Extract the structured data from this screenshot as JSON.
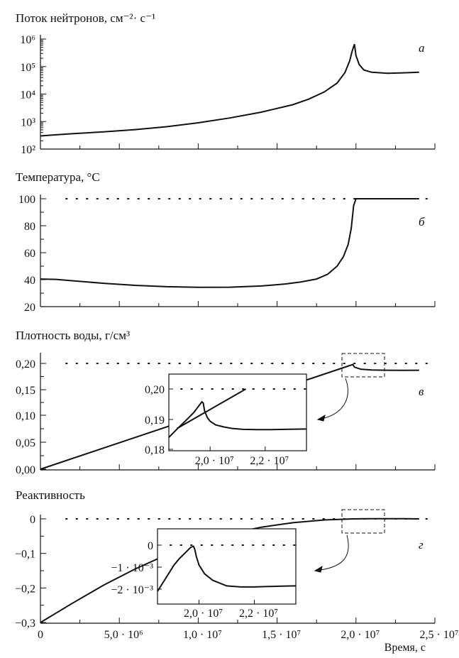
{
  "chart_data": [
    {
      "id": "a",
      "type": "line",
      "title": "Поток нейтронов, см⁻²· с⁻¹",
      "panel_label": "а",
      "yscale": "log",
      "ylim": [
        100,
        1000000
      ],
      "xlim": [
        0,
        25000000
      ],
      "ytick_labels": [
        "10²",
        "10³",
        "10⁴",
        "10⁵",
        "10⁶"
      ],
      "series": [
        {
          "x": [
            0,
            1000000,
            2000000,
            4000000,
            6000000,
            8000000,
            10000000,
            12000000,
            14000000,
            16000000,
            17000000,
            18000000,
            18800000,
            19300000,
            19600000,
            19750000,
            19900000,
            20000000,
            20200000,
            20500000,
            21000000,
            22000000,
            23000000,
            24000000
          ],
          "y": [
            300,
            330,
            360,
            420,
            510,
            650,
            900,
            1350,
            2200,
            4100,
            6500,
            12000,
            25000,
            60000,
            160000,
            350000,
            650000,
            250000,
            120000,
            75000,
            62000,
            57000,
            59000,
            62000
          ]
        }
      ]
    },
    {
      "id": "b",
      "type": "line",
      "title": "Температура, °С",
      "panel_label": "б",
      "ylim": [
        20,
        100
      ],
      "xlim": [
        0,
        25000000
      ],
      "ytick_labels": [
        "20",
        "40",
        "60",
        "80",
        "100"
      ],
      "reference_line": 100,
      "series": [
        {
          "x": [
            0,
            1000000,
            2000000,
            4000000,
            6000000,
            8000000,
            10000000,
            12000000,
            14000000,
            15500000,
            16500000,
            17500000,
            18200000,
            18800000,
            19200000,
            19500000,
            19700000,
            19850000,
            20000000,
            21000000,
            22000000,
            23000000,
            24000000
          ],
          "y": [
            40.5,
            40.2,
            39.2,
            37.3,
            35.8,
            34.8,
            34.3,
            34.4,
            35.3,
            36.8,
            38.3,
            40.5,
            44,
            50,
            57,
            66,
            78,
            95,
            100,
            100,
            100,
            100,
            100
          ]
        }
      ]
    },
    {
      "id": "v",
      "type": "line",
      "title": "Плотность воды, г/см³",
      "panel_label": "в",
      "ylim": [
        0,
        0.22
      ],
      "xlim": [
        0,
        25000000
      ],
      "ytick_labels": [
        "0,00",
        "0,05",
        "0,10",
        "0,15",
        "0,20"
      ],
      "reference_line": 0.2,
      "series": [
        {
          "x": [
            0,
            19600000,
            19800000,
            19900000,
            20300000,
            21000000,
            22000000,
            23000000,
            24000000
          ],
          "y": [
            0,
            0.196,
            0.198,
            0.193,
            0.189,
            0.1875,
            0.187,
            0.1868,
            0.187
          ]
        }
      ],
      "inset": {
        "xlim": [
          18500000,
          23500000
        ],
        "ylim": [
          0.18,
          0.205
        ],
        "xtick_labels": [
          "2,0 · 10⁷",
          "2,2 · 10⁷"
        ],
        "ytick_labels": [
          "0,18",
          "0,19",
          "0,20"
        ],
        "reference_line": 0.2,
        "series": [
          {
            "x": [
              18500000,
              18800000,
              19100000,
              19400000,
              19700000,
              19750000,
              19800000,
              19900000,
              20000000,
              20200000,
              20500000,
              20800000,
              21200000,
              21700000,
              22200000,
              22700000,
              23500000
            ],
            "y": [
              0.184,
              0.1868,
              0.1895,
              0.1922,
              0.1958,
              0.1954,
              0.1928,
              0.1906,
              0.1894,
              0.1882,
              0.1875,
              0.187,
              0.1867,
              0.1866,
              0.1866,
              0.1867,
              0.1868
            ]
          },
          {
            "x": [
              18800000,
              21300000
            ],
            "y": [
              0.187,
              0.2
            ]
          }
        ]
      }
    },
    {
      "id": "g",
      "type": "line",
      "title": "Реактивность",
      "panel_label": "г",
      "ylim": [
        -0.3,
        0.02
      ],
      "xlim": [
        0,
        25000000
      ],
      "ytick_labels": [
        "−0,3",
        "−0,2",
        "−0,1",
        "0"
      ],
      "reference_line": 0,
      "xlabel": "Время, с",
      "xtick_labels": [
        "0",
        "5,0 · 10⁶",
        "1,0 · 10⁷",
        "1,5 · 10⁷",
        "2,0 · 10⁷",
        "2,5 · 10⁷"
      ],
      "series": [
        {
          "x": [
            0,
            2000000,
            4000000,
            6000000,
            8000000,
            10000000,
            12000000,
            14000000,
            16000000,
            18000000,
            19800000,
            21000000,
            22000000,
            23000000,
            24000000
          ],
          "y": [
            -0.3,
            -0.245,
            -0.192,
            -0.145,
            -0.104,
            -0.069,
            -0.043,
            -0.024,
            -0.011,
            -0.003,
            0,
            0.0004,
            0.0005,
            0.0004,
            0
          ]
        }
      ],
      "inset": {
        "xlim": [
          18500000,
          23500000
        ],
        "ylim": [
          -0.0022,
          0.0005
        ],
        "xtick_labels": [
          "2,0 · 10⁷",
          "2,2 · 10⁷"
        ],
        "ytick_labels": [
          "−2 · 10⁻³",
          "−1 · 10⁻³",
          "0"
        ],
        "reference_line": 0,
        "series": [
          {
            "x": [
              18500000,
              18700000,
              18900000,
              19100000,
              19300000,
              19500000,
              19700000,
              19800000,
              19850000,
              19900000,
              20000000,
              20200000,
              20500000,
              21000000,
              21500000,
              22000000,
              22500000,
              23000000,
              23500000
            ],
            "y": [
              -0.0021,
              -0.0017,
              -0.0013,
              -0.0009,
              -0.0006,
              -0.00035,
              -0.0001,
              -5e-05,
              -0.0002,
              -0.0005,
              -0.0009,
              -0.0013,
              -0.0016,
              -0.00185,
              -0.0019,
              -0.0019,
              -0.00188,
              -0.00186,
              -0.00185
            ]
          }
        ]
      }
    }
  ]
}
